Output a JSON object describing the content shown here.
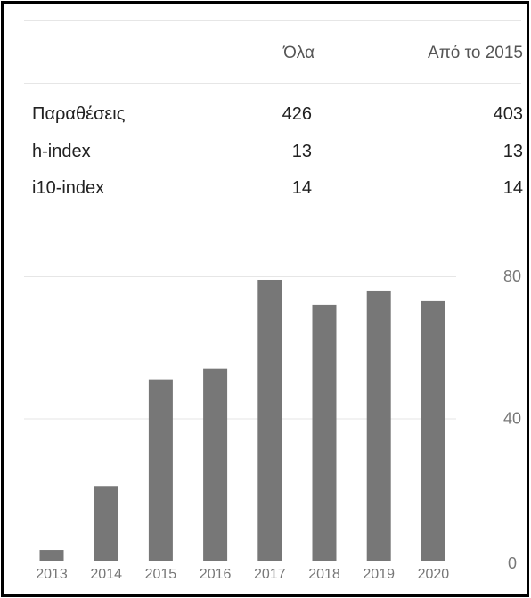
{
  "table": {
    "headers": {
      "all": "Όλα",
      "since": "Από το 2015"
    },
    "rows": [
      {
        "label": "Παραθέσεις",
        "all": "426",
        "since": "403"
      },
      {
        "label": "h-index",
        "all": "13",
        "since": "13"
      },
      {
        "label": "i10-index",
        "all": "14",
        "since": "14"
      }
    ]
  },
  "chart_data": {
    "type": "bar",
    "categories": [
      "2013",
      "2014",
      "2015",
      "2016",
      "2017",
      "2018",
      "2019",
      "2020"
    ],
    "values": [
      3,
      21,
      51,
      54,
      79,
      72,
      76,
      73
    ],
    "y_ticks": [
      0,
      40,
      80
    ],
    "ylim": [
      0,
      80
    ],
    "grid": true,
    "bar_color": "#777777",
    "grid_color": "#e6e6e6",
    "tick_color": "#777777"
  }
}
